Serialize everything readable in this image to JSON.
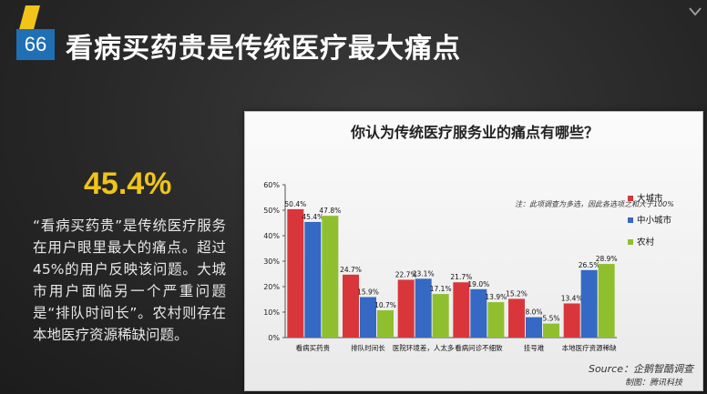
{
  "slide": {
    "number": "66",
    "title": "看病买药贵是传统医疗最大痛点",
    "highlight": "45.4%",
    "description": "“看病买药贵”是传统医疗服务在用户眼里最大的痛点。超过45%的用户反映该问题。大城市用户面临另一个严重问题是“排队时间长”。农村则存在本地医疗资源稀缺问题。"
  },
  "colors": {
    "accent_blue": "#1f6fb5",
    "highlight_yellow": "#f0c419",
    "series_big_city": "#d9363b",
    "series_small_city": "#3569c3",
    "series_rural": "#8fbf2f"
  },
  "chart_data": {
    "type": "bar",
    "title": "你认为传统医疗服务业的痛点有哪些？",
    "categories": [
      "看病买药贵",
      "排队时间长",
      "医院环境差，人太多",
      "看病问诊不细致",
      "挂号难",
      "本地医疗资源稀缺"
    ],
    "series": [
      {
        "name": "大城市",
        "values": [
          50.4,
          24.7,
          22.7,
          21.7,
          15.2,
          13.4
        ],
        "labels": [
          "50.4%",
          "24.7%",
          "22.7%",
          "21.7%",
          "15.2%",
          "13.4%"
        ]
      },
      {
        "name": "中小城市",
        "values": [
          45.4,
          15.9,
          23.1,
          19.0,
          8.0,
          26.5
        ],
        "labels": [
          "45.4%",
          "15.9%",
          "23.1%",
          "19.0%",
          "8.0%",
          "26.5%"
        ]
      },
      {
        "name": "农村",
        "values": [
          47.8,
          10.7,
          17.1,
          13.9,
          5.5,
          28.9
        ],
        "labels": [
          "47.8%",
          "10.7%",
          "17.1%",
          "13.9%",
          "5.5%",
          "28.9%"
        ]
      }
    ],
    "ylim": [
      0,
      60
    ],
    "yticks": [
      "0%",
      "10%",
      "20%",
      "30%",
      "40%",
      "50%",
      "60%"
    ],
    "grid": false,
    "legend": "right",
    "note": "注：此项调查为多选，因此各选项之和大于100%",
    "source": "Source：企鹅智酷调查",
    "maker": "制图：腾讯科技"
  }
}
